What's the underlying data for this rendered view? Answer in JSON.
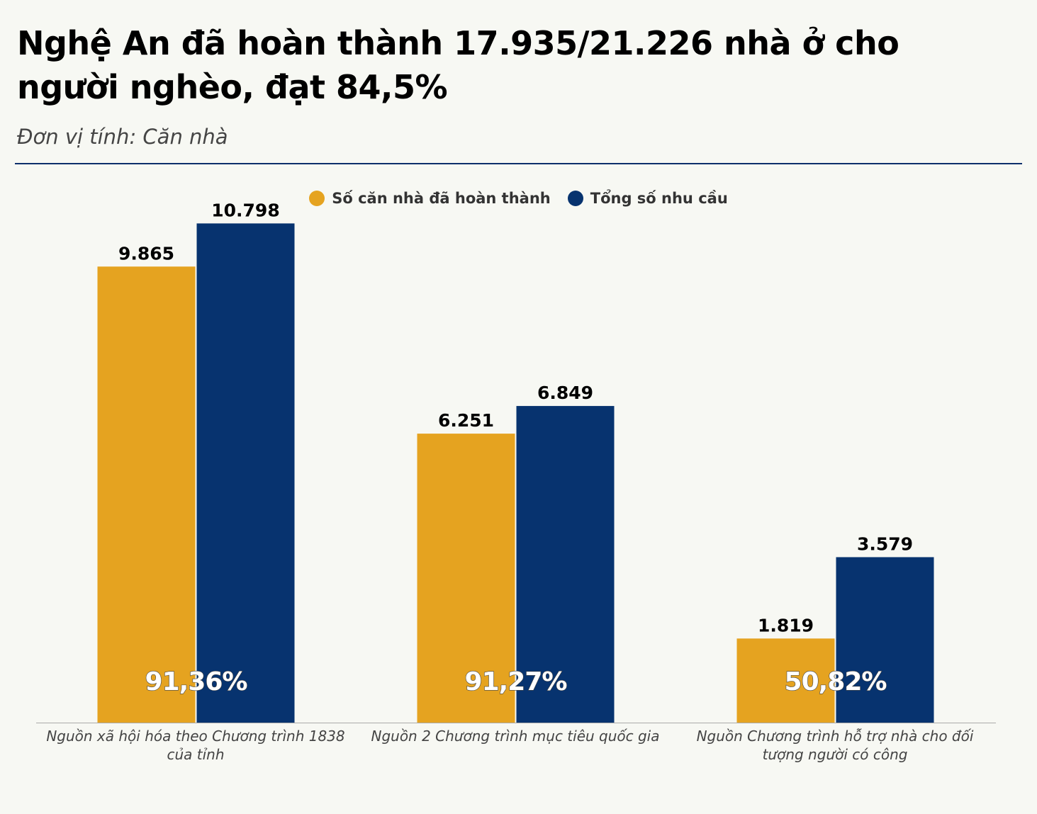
{
  "title": "Nghệ An đã hoàn thành 17.935/21.226 nhà ở cho người nghèo, đạt 84,5%",
  "subtitle": "Đơn vị tính: Căn nhà",
  "colors": {
    "completed": "#e5a320",
    "total": "#07336f",
    "rule": "#0d2f6b"
  },
  "legend": [
    {
      "label": "Số căn nhà đã hoàn thành",
      "color": "#e5a320"
    },
    {
      "label": "Tổng số nhu cầu",
      "color": "#07336f"
    }
  ],
  "chart_data": {
    "type": "bar",
    "categories": [
      "Nguồn xã hội hóa theo Chương trình 1838 của tỉnh",
      "Nguồn 2 Chương trình mục tiêu quốc gia",
      "Nguồn Chương trình hỗ trợ nhà cho đối tượng người có công"
    ],
    "series": [
      {
        "name": "Số căn nhà đã hoàn thành",
        "values": [
          9865,
          6251,
          1819
        ],
        "labels": [
          "9.865",
          "6.251",
          "1.819"
        ]
      },
      {
        "name": "Tổng số nhu cầu",
        "values": [
          10798,
          6849,
          3579
        ],
        "labels": [
          "10.798",
          "6.849",
          "3.579"
        ]
      }
    ],
    "percent_labels": [
      "91,36%",
      "91,27%",
      "50,82%"
    ],
    "ylim": [
      0,
      11800
    ],
    "grid": false,
    "legend_position": "top"
  }
}
